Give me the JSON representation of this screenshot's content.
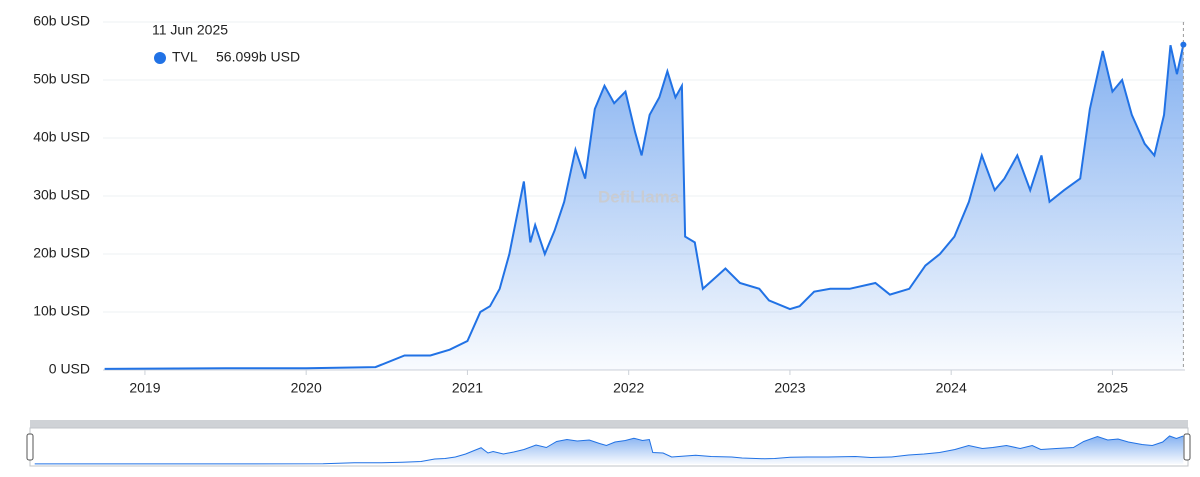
{
  "chart_data": {
    "type": "area",
    "color": "#2172e5",
    "watermark": "DefiLlama",
    "tooltip": {
      "date": "11 Jun 2025",
      "value": 56.099,
      "label": "56.099b USD"
    },
    "xlim": [
      2018.74,
      2025.45
    ],
    "xticks": [
      2019,
      2020,
      2021,
      2022,
      2023,
      2024,
      2025
    ],
    "ylim": [
      0,
      60
    ],
    "yticks": [
      {
        "value": 0,
        "label": "0 USD"
      },
      {
        "value": 10,
        "label": "10b USD"
      },
      {
        "value": 20,
        "label": "20b USD"
      },
      {
        "value": 30,
        "label": "30b USD"
      },
      {
        "value": 40,
        "label": "40b USD"
      },
      {
        "value": 50,
        "label": "50b USD"
      },
      {
        "value": 60,
        "label": "60b USD"
      }
    ],
    "grid": true,
    "series": [
      {
        "name": "TVL",
        "color": "#2172e5",
        "x": [
          2018.75,
          2019.5,
          2020.0,
          2020.43,
          2020.61,
          2020.77,
          2020.89,
          2021.0,
          2021.08,
          2021.14,
          2021.2,
          2021.26,
          2021.31,
          2021.35,
          2021.39,
          2021.42,
          2021.48,
          2021.54,
          2021.6,
          2021.67,
          2021.73,
          2021.79,
          2021.85,
          2021.91,
          2021.98,
          2022.04,
          2022.08,
          2022.13,
          2022.19,
          2022.24,
          2022.29,
          2022.33,
          2022.35,
          2022.41,
          2022.46,
          2022.54,
          2022.6,
          2022.69,
          2022.81,
          2022.87,
          2023.0,
          2023.06,
          2023.15,
          2023.25,
          2023.37,
          2023.53,
          2023.62,
          2023.74,
          2023.84,
          2023.93,
          2024.02,
          2024.11,
          2024.19,
          2024.27,
          2024.33,
          2024.41,
          2024.49,
          2024.56,
          2024.61,
          2024.7,
          2024.8,
          2024.86,
          2024.94,
          2025.0,
          2025.06,
          2025.12,
          2025.2,
          2025.26,
          2025.32,
          2025.36,
          2025.4,
          2025.44
        ],
        "values": [
          0.2,
          0.3,
          0.3,
          0.5,
          2.5,
          2.5,
          3.5,
          5,
          10,
          11,
          14,
          20,
          27,
          32.5,
          22,
          25,
          20,
          24,
          29,
          38,
          33,
          45,
          49,
          46,
          48,
          41,
          37,
          44,
          47,
          51.5,
          47,
          49,
          23,
          22,
          14,
          16,
          17.5,
          15,
          14,
          12,
          10.5,
          11,
          13.5,
          14,
          14,
          15,
          13,
          14,
          18,
          20,
          23,
          29,
          37,
          31,
          33,
          37,
          31,
          37,
          29,
          31,
          33,
          45,
          55,
          48,
          50,
          44,
          39,
          37,
          44,
          56,
          51,
          56.1
        ]
      }
    ]
  }
}
